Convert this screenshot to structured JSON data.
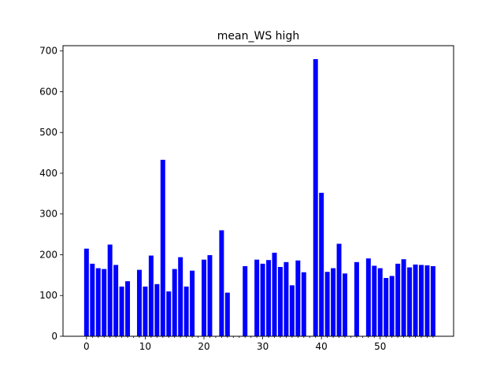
{
  "chart_data": {
    "type": "bar",
    "title": "mean_WS high",
    "xlabel": "",
    "ylabel": "",
    "x": [
      0,
      1,
      2,
      3,
      4,
      5,
      6,
      7,
      8,
      9,
      10,
      11,
      12,
      13,
      14,
      15,
      16,
      17,
      18,
      19,
      20,
      21,
      22,
      23,
      24,
      25,
      26,
      27,
      28,
      29,
      30,
      31,
      32,
      33,
      34,
      35,
      36,
      37,
      38,
      39,
      40,
      41,
      42,
      43,
      44,
      45,
      46,
      47,
      48,
      49,
      50,
      51,
      52,
      53,
      54,
      55,
      56,
      57,
      58,
      59
    ],
    "values": [
      215,
      178,
      167,
      165,
      225,
      175,
      122,
      135,
      0,
      163,
      122,
      198,
      128,
      433,
      110,
      165,
      194,
      122,
      161,
      0,
      188,
      199,
      0,
      260,
      107,
      0,
      0,
      172,
      0,
      188,
      178,
      187,
      205,
      170,
      182,
      125,
      186,
      157,
      0,
      680,
      352,
      158,
      167,
      227,
      154,
      0,
      182,
      0,
      191,
      173,
      167,
      143,
      148,
      178,
      189,
      169,
      176,
      175,
      174,
      172
    ],
    "xlim": [
      -4,
      62.5
    ],
    "ylim": [
      0,
      713
    ],
    "xticks": [
      0,
      10,
      20,
      30,
      40,
      50
    ],
    "xtick_labels": [
      "0",
      "10",
      "20",
      "30",
      "40",
      "50"
    ],
    "minor_xticks": [
      1,
      2,
      3,
      4,
      5,
      6,
      7,
      8,
      9,
      11,
      12,
      13,
      14,
      15,
      16,
      17,
      18,
      19,
      21,
      22,
      23,
      24,
      25,
      26,
      27,
      28,
      29,
      31,
      32,
      33,
      34,
      35,
      36,
      37,
      38,
      39,
      41,
      42,
      43,
      44,
      45,
      46,
      47,
      48,
      49,
      51,
      52,
      53,
      54,
      55,
      56,
      57,
      58,
      59
    ],
    "yticks": [
      0,
      100,
      200,
      300,
      400,
      500,
      600,
      700
    ],
    "ytick_labels": [
      "0",
      "100",
      "200",
      "300",
      "400",
      "500",
      "600",
      "700"
    ],
    "bar_color": "#0000ff",
    "grid": false,
    "legend": "none"
  }
}
